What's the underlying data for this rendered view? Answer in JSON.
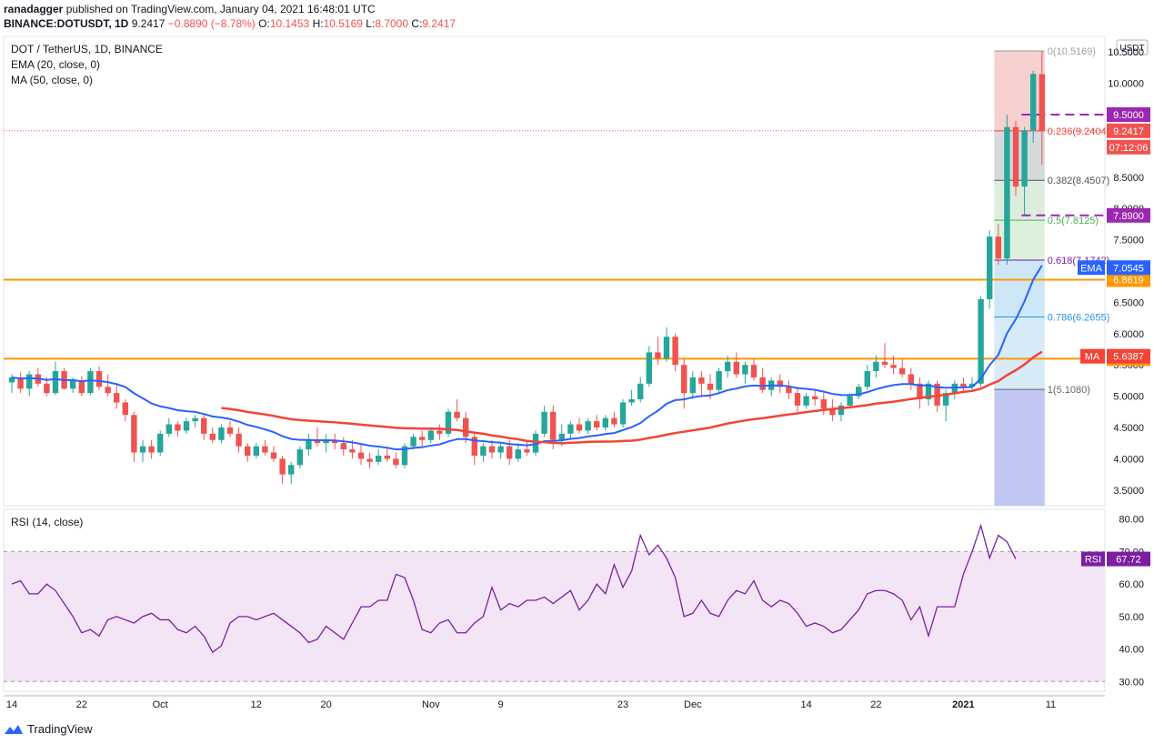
{
  "header": {
    "published_by": "ranadagger",
    "published_rest": " published on TradingView.com, January 04, 2021 16:48:01 UTC",
    "symbol": "BINANCE:DOTUSDT, 1D",
    "last": "9.2417",
    "change": "−0.8890 (−8.78%)",
    "open_label": "O:",
    "open": "10.1453",
    "high_label": "H:",
    "high": "10.5169",
    "low_label": "L:",
    "low": "8.7000",
    "close_label": "C:",
    "close": "9.2417"
  },
  "legend": {
    "title": "DOT / TetherUS, 1D, BINANCE",
    "ema": "EMA (20, close, 0)",
    "ma": "MA (50, close, 0)",
    "rsi": "RSI (14, close)"
  },
  "currency": "USDT",
  "footer": {
    "brand": "TradingView"
  },
  "colors": {
    "up": "#26a69a",
    "down": "#ef5350",
    "ema": "#2962ff",
    "ma": "#f44336",
    "orange_line": "#ff9800",
    "purple_dash": "#9c27b0",
    "rsi": "#7b1fa2",
    "rsi_band": "#f3e5f5"
  },
  "chart_data": [
    {
      "type": "candlestick",
      "title": "DOT / TetherUS, 1D, BINANCE",
      "ylim": [
        3.25,
        10.75
      ],
      "y_ticks": [
        "3.5000",
        "4.0000",
        "4.5000",
        "5.0000",
        "5.5000",
        "6.0000",
        "6.5000",
        "7.0000",
        "7.5000",
        "8.0000",
        "8.5000",
        "9.0000",
        "9.5000",
        "10.0000",
        "10.5000"
      ],
      "x_ticks": [
        {
          "label": "14",
          "day": 0
        },
        {
          "label": "22",
          "day": 8
        },
        {
          "label": "Oct",
          "day": 17
        },
        {
          "label": "12",
          "day": 28
        },
        {
          "label": "20",
          "day": 36
        },
        {
          "label": "Nov",
          "day": 48
        },
        {
          "label": "9",
          "day": 56
        },
        {
          "label": "23",
          "day": 70
        },
        {
          "label": "Dec",
          "day": 78
        },
        {
          "label": "14",
          "day": 91
        },
        {
          "label": "22",
          "day": 99
        },
        {
          "label": "2021",
          "day": 109
        },
        {
          "label": "11",
          "day": 119
        }
      ],
      "candles": [
        [
          5.22,
          5.35,
          5.05,
          5.3
        ],
        [
          5.3,
          5.38,
          5.05,
          5.12
        ],
        [
          5.12,
          5.4,
          5.0,
          5.35
        ],
        [
          5.35,
          5.45,
          5.15,
          5.2
        ],
        [
          5.2,
          5.3,
          5.0,
          5.05
        ],
        [
          5.05,
          5.55,
          5.02,
          5.4
        ],
        [
          5.4,
          5.45,
          5.1,
          5.12
        ],
        [
          5.12,
          5.3,
          5.05,
          5.25
        ],
        [
          5.25,
          5.32,
          5.0,
          5.05
        ],
        [
          5.05,
          5.45,
          5.02,
          5.4
        ],
        [
          5.4,
          5.48,
          5.1,
          5.15
        ],
        [
          5.15,
          5.35,
          5.0,
          5.05
        ],
        [
          5.05,
          5.2,
          4.8,
          4.9
        ],
        [
          4.9,
          4.95,
          4.6,
          4.7
        ],
        [
          4.7,
          4.75,
          3.95,
          4.1
        ],
        [
          4.1,
          4.3,
          3.95,
          4.2
        ],
        [
          4.2,
          4.3,
          4.0,
          4.1
        ],
        [
          4.1,
          4.45,
          4.05,
          4.4
        ],
        [
          4.4,
          4.65,
          4.35,
          4.55
        ],
        [
          4.55,
          4.6,
          4.35,
          4.45
        ],
        [
          4.45,
          4.65,
          4.4,
          4.6
        ],
        [
          4.6,
          4.7,
          4.5,
          4.65
        ],
        [
          4.65,
          4.7,
          4.3,
          4.4
        ],
        [
          4.4,
          4.5,
          4.25,
          4.3
        ],
        [
          4.3,
          4.55,
          4.25,
          4.5
        ],
        [
          4.5,
          4.6,
          4.35,
          4.4
        ],
        [
          4.4,
          4.5,
          4.1,
          4.2
        ],
        [
          4.2,
          4.25,
          3.95,
          4.05
        ],
        [
          4.05,
          4.25,
          4.0,
          4.2
        ],
        [
          4.2,
          4.3,
          4.05,
          4.1
        ],
        [
          4.1,
          4.2,
          3.95,
          4.0
        ],
        [
          4.0,
          4.05,
          3.6,
          3.75
        ],
        [
          3.75,
          3.95,
          3.6,
          3.9
        ],
        [
          3.9,
          4.2,
          3.85,
          4.15
        ],
        [
          4.15,
          4.4,
          4.05,
          4.3
        ],
        [
          4.3,
          4.5,
          4.2,
          4.25
        ],
        [
          4.25,
          4.4,
          4.1,
          4.3
        ],
        [
          4.3,
          4.4,
          4.15,
          4.25
        ],
        [
          4.25,
          4.35,
          4.05,
          4.15
        ],
        [
          4.15,
          4.3,
          4.0,
          4.1
        ],
        [
          4.1,
          4.25,
          3.9,
          4.0
        ],
        [
          4.0,
          4.1,
          3.85,
          3.95
        ],
        [
          3.95,
          4.15,
          3.9,
          4.05
        ],
        [
          4.05,
          4.2,
          3.95,
          4.0
        ],
        [
          4.0,
          4.1,
          3.85,
          3.9
        ],
        [
          3.9,
          4.25,
          3.85,
          4.2
        ],
        [
          4.2,
          4.4,
          4.15,
          4.35
        ],
        [
          4.35,
          4.45,
          4.2,
          4.3
        ],
        [
          4.3,
          4.5,
          4.25,
          4.45
        ],
        [
          4.45,
          4.55,
          4.3,
          4.4
        ],
        [
          4.4,
          4.8,
          4.35,
          4.75
        ],
        [
          4.75,
          4.95,
          4.6,
          4.65
        ],
        [
          4.65,
          4.75,
          4.25,
          4.35
        ],
        [
          4.35,
          4.4,
          3.9,
          4.05
        ],
        [
          4.05,
          4.25,
          3.95,
          4.2
        ],
        [
          4.2,
          4.3,
          4.0,
          4.1
        ],
        [
          4.1,
          4.25,
          4.0,
          4.2
        ],
        [
          4.2,
          4.3,
          3.9,
          4.0
        ],
        [
          4.0,
          4.25,
          3.95,
          4.15
        ],
        [
          4.15,
          4.3,
          4.05,
          4.1
        ],
        [
          4.1,
          4.45,
          4.05,
          4.4
        ],
        [
          4.4,
          4.85,
          4.35,
          4.75
        ],
        [
          4.75,
          4.85,
          4.15,
          4.3
        ],
        [
          4.3,
          4.55,
          4.2,
          4.4
        ],
        [
          4.4,
          4.6,
          4.3,
          4.55
        ],
        [
          4.55,
          4.65,
          4.4,
          4.45
        ],
        [
          4.45,
          4.65,
          4.4,
          4.6
        ],
        [
          4.6,
          4.7,
          4.45,
          4.5
        ],
        [
          4.5,
          4.7,
          4.45,
          4.65
        ],
        [
          4.65,
          4.75,
          4.5,
          4.55
        ],
        [
          4.55,
          4.95,
          4.5,
          4.9
        ],
        [
          4.9,
          5.1,
          4.85,
          4.95
        ],
        [
          4.95,
          5.3,
          4.9,
          5.2
        ],
        [
          5.2,
          5.8,
          5.15,
          5.7
        ],
        [
          5.7,
          5.95,
          5.5,
          5.6
        ],
        [
          5.6,
          6.1,
          5.55,
          5.95
        ],
        [
          5.95,
          6.0,
          5.4,
          5.5
        ],
        [
          5.5,
          5.6,
          4.8,
          5.05
        ],
        [
          5.05,
          5.4,
          4.95,
          5.3
        ],
        [
          5.3,
          5.4,
          5.0,
          5.2
        ],
        [
          5.2,
          5.35,
          4.95,
          5.1
        ],
        [
          5.1,
          5.45,
          5.05,
          5.4
        ],
        [
          5.4,
          5.65,
          5.3,
          5.55
        ],
        [
          5.55,
          5.7,
          5.3,
          5.35
        ],
        [
          5.35,
          5.55,
          5.2,
          5.5
        ],
        [
          5.5,
          5.6,
          5.25,
          5.3
        ],
        [
          5.3,
          5.45,
          5.05,
          5.1
        ],
        [
          5.1,
          5.3,
          5.0,
          5.25
        ],
        [
          5.25,
          5.35,
          5.05,
          5.15
        ],
        [
          5.15,
          5.25,
          4.95,
          5.05
        ],
        [
          5.05,
          5.15,
          4.75,
          4.85
        ],
        [
          4.85,
          5.05,
          4.8,
          5.0
        ],
        [
          5.0,
          5.1,
          4.85,
          4.95
        ],
        [
          4.95,
          5.05,
          4.7,
          4.8
        ],
        [
          4.8,
          4.95,
          4.6,
          4.7
        ],
        [
          4.7,
          4.9,
          4.6,
          4.85
        ],
        [
          4.85,
          5.05,
          4.8,
          5.0
        ],
        [
          5.0,
          5.2,
          4.95,
          5.15
        ],
        [
          5.15,
          5.5,
          5.1,
          5.4
        ],
        [
          5.4,
          5.65,
          5.3,
          5.55
        ],
        [
          5.55,
          5.85,
          5.45,
          5.5
        ],
        [
          5.5,
          5.65,
          5.35,
          5.45
        ],
        [
          5.45,
          5.6,
          5.3,
          5.35
        ],
        [
          5.35,
          5.45,
          5.1,
          5.2
        ],
        [
          5.2,
          5.3,
          4.8,
          4.95
        ],
        [
          4.95,
          5.25,
          4.85,
          5.2
        ],
        [
          5.2,
          5.25,
          4.75,
          4.85
        ],
        [
          4.85,
          5.1,
          4.6,
          5.05
        ],
        [
          5.05,
          5.25,
          4.95,
          5.2
        ],
        [
          5.2,
          5.3,
          5.05,
          5.15
        ],
        [
          5.15,
          5.3,
          5.1,
          5.2
        ],
        [
          5.2,
          6.6,
          5.15,
          6.55
        ],
        [
          6.55,
          7.65,
          6.4,
          7.55
        ],
        [
          7.55,
          7.75,
          7.1,
          7.2
        ],
        [
          7.2,
          9.5,
          7.1,
          9.3
        ],
        [
          9.3,
          9.4,
          8.2,
          8.35
        ],
        [
          8.35,
          9.3,
          7.9,
          9.25
        ],
        [
          9.25,
          10.2,
          9.05,
          10.15
        ],
        [
          10.1453,
          10.5169,
          8.7,
          9.2417
        ]
      ],
      "ema20_end": "7.0545",
      "ma50_end": "5.6387",
      "current_price": "9.2417",
      "countdown": "07:12:06",
      "levels": [
        {
          "label": "9.5000",
          "kind": "purple-dash"
        },
        {
          "label": "7.8900",
          "kind": "purple-dash"
        },
        {
          "label": "6.8619",
          "kind": "orange"
        },
        {
          "label": "5.6000",
          "kind": "orange"
        }
      ],
      "fibonacci": [
        {
          "ratio": "0",
          "value": 10.5169,
          "label": "0(10.5169)"
        },
        {
          "ratio": "0.236",
          "value": 9.2404,
          "label": "0.236(9.2404)"
        },
        {
          "ratio": "0.382",
          "value": 8.4507,
          "label": "0.382(8.4507)"
        },
        {
          "ratio": "0.5",
          "value": 7.8125,
          "label": "0.5(7.8125)"
        },
        {
          "ratio": "0.618",
          "value": 7.1742,
          "label": "0.618(7.1742)"
        },
        {
          "ratio": "0.786",
          "value": 6.2655,
          "label": "0.786(6.2655)"
        },
        {
          "ratio": "1",
          "value": 5.108,
          "label": "1(5.1080)"
        }
      ],
      "ema_label": "EMA",
      "ma_label": "MA"
    },
    {
      "type": "line",
      "title": "RSI (14, close)",
      "ylim": [
        27,
        83
      ],
      "y_ticks": [
        "30.00",
        "40.00",
        "50.00",
        "60.00",
        "70.00",
        "80.00"
      ],
      "band": [
        30,
        70
      ],
      "last": "67.72",
      "label": "RSI",
      "values": [
        60,
        61,
        57,
        57,
        60,
        58,
        54,
        50,
        45,
        46,
        44,
        49,
        50,
        49,
        48,
        50,
        51,
        49,
        49,
        46,
        45,
        47,
        44,
        39,
        41,
        48,
        50,
        50,
        49,
        50,
        51,
        49,
        47,
        45,
        42,
        43,
        47,
        45,
        43,
        48,
        53,
        53,
        55,
        55,
        63,
        62,
        55,
        46,
        45,
        48,
        49,
        45,
        45,
        48,
        50,
        59,
        52,
        54,
        53,
        55,
        55,
        56,
        54,
        56,
        58,
        52,
        55,
        60,
        57,
        66,
        59,
        64,
        75,
        69,
        72,
        68,
        62,
        50,
        51,
        55,
        51,
        50,
        55,
        58,
        57,
        61,
        55,
        53,
        55,
        54,
        51,
        47,
        48,
        47,
        45,
        46,
        49,
        52,
        57,
        58,
        58,
        57,
        55,
        49,
        53,
        44,
        53,
        53,
        53,
        63,
        70,
        78,
        68,
        75,
        73,
        67.72
      ]
    }
  ]
}
